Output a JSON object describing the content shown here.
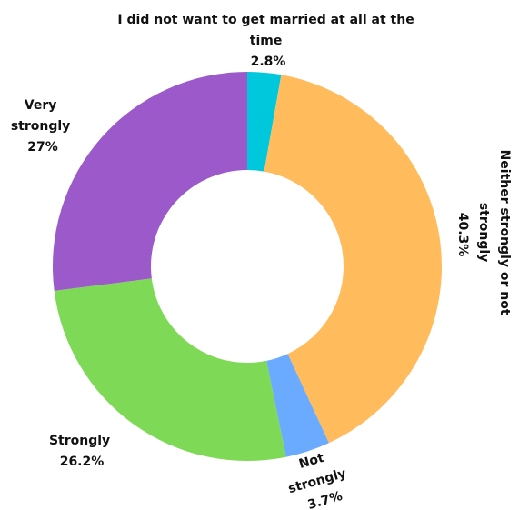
{
  "chart_data": {
    "type": "pie",
    "variant": "donut",
    "title": "",
    "legend": "none",
    "slices": [
      {
        "name": "I did not want to get married at all at the time",
        "value": 2.8,
        "value_label": "2.8%",
        "color": "#00c8dc",
        "label_lines": [
          "I did not want to get married at all at the",
          "time",
          "2.8%"
        ]
      },
      {
        "name": "Neither strongly or not strongly",
        "value": 40.3,
        "value_label": "40.3%",
        "color": "#ffbb5c",
        "label_lines": [
          "Neither strongly or not",
          "strongly",
          "40.3%"
        ]
      },
      {
        "name": "Not strongly",
        "value": 3.7,
        "value_label": "3.7%",
        "color": "#6aaaff",
        "label_lines": [
          "Not",
          "strongly",
          "3.7%"
        ]
      },
      {
        "name": "Strongly",
        "value": 26.2,
        "value_label": "26.2%",
        "color": "#7ed957",
        "label_lines": [
          "Strongly",
          "26.2%"
        ]
      },
      {
        "name": "Very strongly",
        "value": 27,
        "value_label": "27%",
        "color": "#9b59c9",
        "label_lines": [
          "Very",
          "strongly",
          "27%"
        ]
      }
    ]
  }
}
